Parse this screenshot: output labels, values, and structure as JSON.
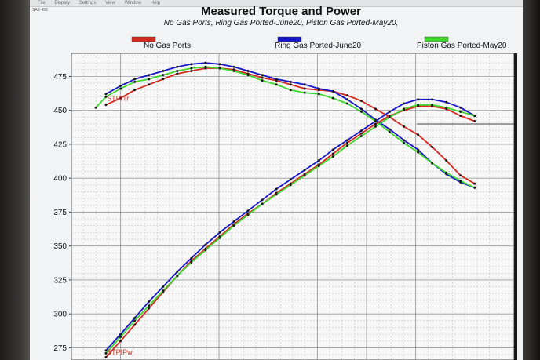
{
  "menubar": {
    "items": [
      "File",
      "Display",
      "Settings",
      "View",
      "Window",
      "Help"
    ],
    "field_label": "SAE 438"
  },
  "chart_data": {
    "type": "line",
    "title": "Measured Torque and Power",
    "subtitle": "No Gas Ports, Ring Gas Ported-June20, Piston Gas Ported-May20,",
    "y_ticks": [
      275,
      300,
      325,
      350,
      375,
      400,
      425,
      450,
      475
    ],
    "ylim": [
      266,
      492
    ],
    "xlim": [
      0,
      1
    ],
    "grid": true,
    "legend_placement": "top",
    "legend": [
      {
        "name": "No Gas Ports",
        "color": "#d42a20"
      },
      {
        "name": "Ring Gas Ported-June20",
        "color": "#1717c9"
      },
      {
        "name": "Piston Gas Ported-May20",
        "color": "#3fd62e"
      }
    ],
    "curve_labels": [
      {
        "text": "STPITr",
        "color": "#c0392b"
      },
      {
        "text": "STPIPw",
        "color": "#c0392b"
      }
    ],
    "reference_line_y": 440,
    "series": [
      {
        "color": "#d42a20",
        "kind": "torque",
        "x": [
          0.078,
          0.111,
          0.143,
          0.175,
          0.207,
          0.239,
          0.271,
          0.303,
          0.335,
          0.367,
          0.399,
          0.431,
          0.463,
          0.495,
          0.527,
          0.559,
          0.591,
          0.623,
          0.655,
          0.687,
          0.719,
          0.751,
          0.783,
          0.815,
          0.847,
          0.879,
          0.911
        ],
        "y": [
          454,
          459,
          465,
          469,
          473,
          477,
          479,
          481,
          481,
          480,
          477,
          474,
          472,
          469,
          466,
          465,
          464,
          461,
          457,
          451,
          445,
          438,
          432,
          423,
          413,
          402,
          396
        ]
      },
      {
        "color": "#1717c9",
        "kind": "torque",
        "x": [
          0.078,
          0.111,
          0.143,
          0.175,
          0.207,
          0.239,
          0.271,
          0.303,
          0.335,
          0.367,
          0.399,
          0.431,
          0.463,
          0.495,
          0.527,
          0.559,
          0.591,
          0.623,
          0.655,
          0.687,
          0.719,
          0.751,
          0.783,
          0.815,
          0.847,
          0.879,
          0.911
        ],
        "y": [
          462,
          468,
          473,
          476,
          479,
          482,
          484,
          485,
          484,
          482,
          479,
          476,
          473,
          471,
          469,
          466,
          464,
          458,
          451,
          443,
          436,
          428,
          421,
          411,
          403,
          397,
          393
        ]
      },
      {
        "color": "#3fd62e",
        "kind": "torque",
        "x": [
          0.055,
          0.078,
          0.111,
          0.143,
          0.175,
          0.207,
          0.239,
          0.271,
          0.303,
          0.335,
          0.367,
          0.399,
          0.431,
          0.463,
          0.495,
          0.527,
          0.559,
          0.591,
          0.623,
          0.655,
          0.687,
          0.719,
          0.751,
          0.783,
          0.815,
          0.847,
          0.879,
          0.911
        ],
        "y": [
          452,
          460,
          466,
          471,
          473,
          476,
          479,
          481,
          482,
          481,
          479,
          476,
          472,
          469,
          465,
          463,
          462,
          459,
          455,
          449,
          442,
          434,
          426,
          419,
          411,
          404,
          398,
          393
        ]
      },
      {
        "color": "#d42a20",
        "kind": "power",
        "x": [
          0.078,
          0.111,
          0.143,
          0.175,
          0.207,
          0.239,
          0.271,
          0.303,
          0.335,
          0.367,
          0.399,
          0.431,
          0.463,
          0.495,
          0.527,
          0.559,
          0.591,
          0.623,
          0.655,
          0.687,
          0.719,
          0.751,
          0.783,
          0.815,
          0.847,
          0.879,
          0.911
        ],
        "y": [
          268,
          280,
          292,
          304,
          316,
          328,
          339,
          348,
          357,
          366,
          374,
          381,
          389,
          396,
          403,
          410,
          418,
          426,
          433,
          440,
          446,
          450,
          453,
          453,
          451,
          446,
          442
        ]
      },
      {
        "color": "#1717c9",
        "kind": "power",
        "x": [
          0.078,
          0.111,
          0.143,
          0.175,
          0.207,
          0.239,
          0.271,
          0.303,
          0.335,
          0.367,
          0.399,
          0.431,
          0.463,
          0.495,
          0.527,
          0.559,
          0.591,
          0.623,
          0.655,
          0.687,
          0.719,
          0.751,
          0.783,
          0.815,
          0.847,
          0.879,
          0.911
        ],
        "y": [
          273,
          285,
          297,
          309,
          320,
          331,
          341,
          351,
          360,
          368,
          376,
          384,
          392,
          399,
          406,
          413,
          421,
          428,
          435,
          442,
          449,
          455,
          458,
          458,
          456,
          452,
          446
        ]
      },
      {
        "color": "#3fd62e",
        "kind": "power",
        "x": [
          0.078,
          0.111,
          0.143,
          0.175,
          0.207,
          0.239,
          0.271,
          0.303,
          0.335,
          0.367,
          0.399,
          0.431,
          0.463,
          0.495,
          0.527,
          0.559,
          0.591,
          0.623,
          0.655,
          0.687,
          0.719,
          0.751,
          0.783,
          0.815,
          0.847,
          0.879,
          0.911
        ],
        "y": [
          271,
          283,
          295,
          306,
          317,
          328,
          338,
          347,
          356,
          365,
          373,
          381,
          388,
          395,
          402,
          409,
          416,
          424,
          431,
          438,
          445,
          451,
          454,
          454,
          452,
          449,
          446
        ]
      }
    ]
  }
}
